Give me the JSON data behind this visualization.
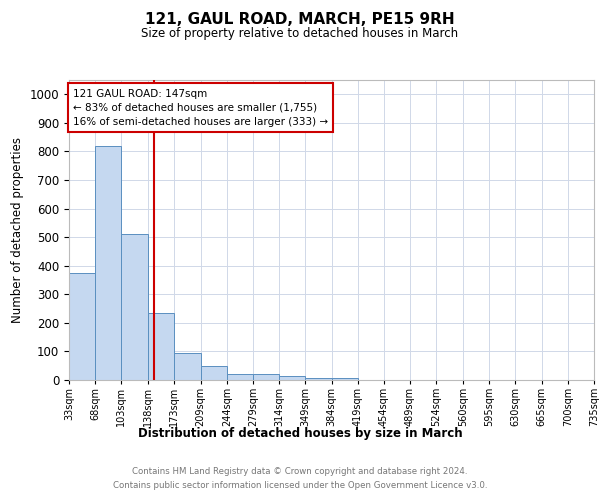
{
  "title": "121, GAUL ROAD, MARCH, PE15 9RH",
  "subtitle": "Size of property relative to detached houses in March",
  "xlabel": "Distribution of detached houses by size in March",
  "ylabel": "Number of detached properties",
  "bin_edges": [
    33,
    68,
    103,
    138,
    173,
    209,
    244,
    279,
    314,
    349,
    384,
    419,
    454,
    489,
    524,
    560,
    595,
    630,
    665,
    700,
    735
  ],
  "bar_heights": [
    375,
    820,
    510,
    235,
    95,
    50,
    20,
    20,
    13,
    8,
    8,
    0,
    0,
    0,
    0,
    0,
    0,
    0,
    0,
    0
  ],
  "bar_color": "#c5d8f0",
  "bar_edge_color": "#5a8fc0",
  "vline_x": 147,
  "vline_color": "#cc0000",
  "ylim": [
    0,
    1050
  ],
  "annotation_text": "121 GAUL ROAD: 147sqm\n← 83% of detached houses are smaller (1,755)\n16% of semi-detached houses are larger (333) →",
  "annotation_box_color": "#cc0000",
  "footer_line1": "Contains HM Land Registry data © Crown copyright and database right 2024.",
  "footer_line2": "Contains public sector information licensed under the Open Government Licence v3.0.",
  "background_color": "#ffffff",
  "grid_color": "#d0d8e8",
  "yticks": [
    0,
    100,
    200,
    300,
    400,
    500,
    600,
    700,
    800,
    900,
    1000
  ]
}
